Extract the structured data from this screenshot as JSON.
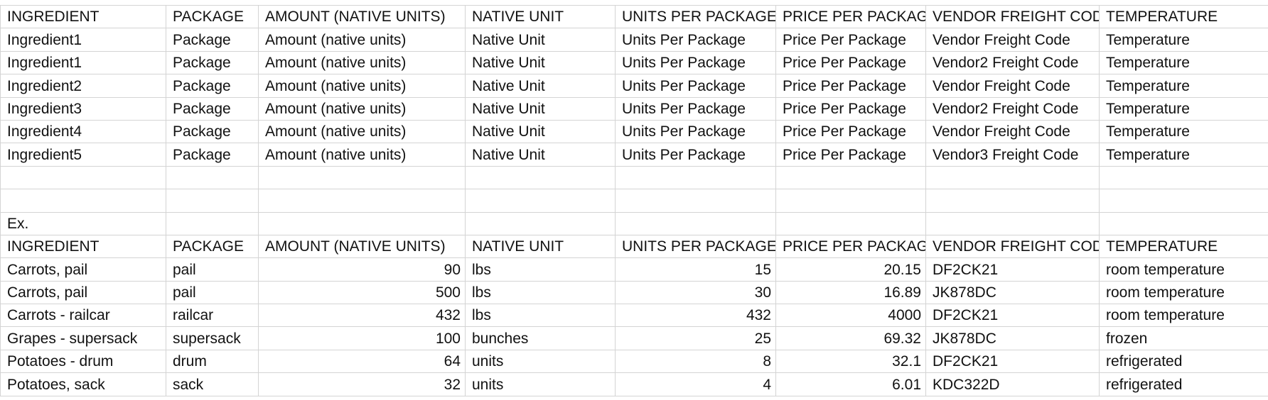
{
  "header_labels": [
    "INGREDIENT",
    "PACKAGE",
    "AMOUNT (NATIVE UNITS)",
    "NATIVE UNIT",
    "UNITS PER PACKAGE",
    "PRICE PER PACKAGE",
    "VENDOR FREIGHT CODE",
    "TEMPERATURE"
  ],
  "template_rows": [
    [
      "Ingredient1",
      "Package",
      "Amount (native units)",
      "Native Unit",
      "Units Per Package",
      "Price Per Package",
      "Vendor Freight Code",
      "Temperature"
    ],
    [
      "Ingredient1",
      "Package",
      "Amount (native units)",
      "Native Unit",
      "Units Per Package",
      "Price Per Package",
      "Vendor2 Freight Code",
      "Temperature"
    ],
    [
      "Ingredient2",
      "Package",
      "Amount (native units)",
      "Native Unit",
      "Units Per Package",
      "Price Per Package",
      "Vendor Freight Code",
      "Temperature"
    ],
    [
      "Ingredient3",
      "Package",
      "Amount (native units)",
      "Native Unit",
      "Units Per Package",
      "Price Per Package",
      "Vendor2 Freight Code",
      "Temperature"
    ],
    [
      "Ingredient4",
      "Package",
      "Amount (native units)",
      "Native Unit",
      "Units Per Package",
      "Price Per Package",
      "Vendor Freight Code",
      "Temperature"
    ],
    [
      "Ingredient5",
      "Package",
      "Amount (native units)",
      "Native Unit",
      "Units Per Package",
      "Price Per Package",
      "Vendor3 Freight Code",
      "Temperature"
    ]
  ],
  "example_label": "Ex.",
  "example_rows": [
    [
      "Carrots, pail",
      "pail",
      "90",
      "lbs",
      "15",
      "20.15",
      "DF2CK21",
      "room temperature"
    ],
    [
      "Carrots, pail",
      "pail",
      "500",
      "lbs",
      "30",
      "16.89",
      "JK878DC",
      "room temperature"
    ],
    [
      "Carrots - railcar",
      "railcar",
      "432",
      "lbs",
      "432",
      "4000",
      "DF2CK21",
      "room temperature"
    ],
    [
      "Grapes - supersack",
      "supersack",
      "100",
      "bunches",
      "25",
      "69.32",
      "JK878DC",
      "frozen"
    ],
    [
      "Potatoes - drum",
      "drum",
      "64",
      "units",
      "8",
      "32.1",
      "DF2CK21",
      "refrigerated"
    ],
    [
      "Potatoes, sack",
      "sack",
      "32",
      "units",
      "4",
      "6.01",
      "KDC322D",
      "refrigerated"
    ]
  ]
}
